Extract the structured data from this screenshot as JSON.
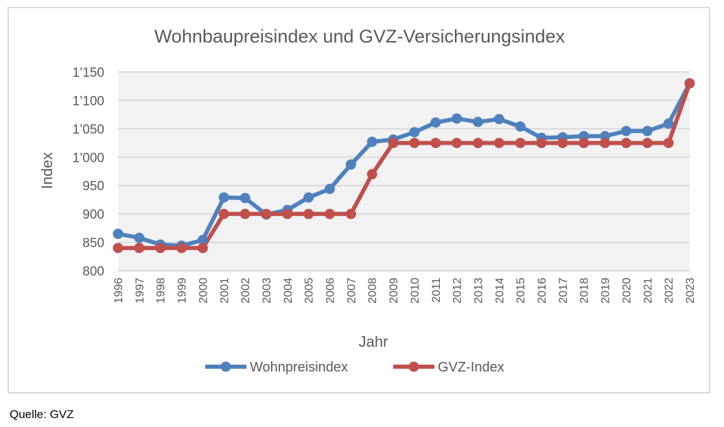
{
  "source_note": "Quelle: GVZ",
  "colors": {
    "series_1": "#4f81bd",
    "series_2": "#c0504d",
    "plot_bg": "#f2f2f2",
    "grid": "#d9d9d9"
  },
  "chart_data": {
    "type": "line",
    "title": "Wohnbaupreisindex und GVZ-Versicherungsindex",
    "xlabel": "Jahr",
    "ylabel": "Index",
    "ylim": [
      800,
      1150
    ],
    "y_ticks": [
      800,
      850,
      900,
      950,
      1000,
      1050,
      1100,
      1150
    ],
    "y_tick_labels": [
      "800",
      "850",
      "900",
      "950",
      "1’000",
      "1’050",
      "1’100",
      "1’150"
    ],
    "grid": true,
    "legend_position": "bottom",
    "categories": [
      "1996",
      "1997",
      "1998",
      "1999",
      "2000",
      "2001",
      "2002",
      "2003",
      "2004",
      "2005",
      "2006",
      "2007",
      "2008",
      "2009",
      "2010",
      "2011",
      "2012",
      "2013",
      "2014",
      "2015",
      "2016",
      "2017",
      "2018",
      "2019",
      "2020",
      "2021",
      "2022",
      "2023"
    ],
    "series": [
      {
        "name": "Wohnpreisindex",
        "values": [
          865,
          858,
          846,
          844,
          854,
          929,
          928,
          899,
          907,
          929,
          944,
          987,
          1027,
          1031,
          1044,
          1061,
          1068,
          1062,
          1067,
          1054,
          1034,
          1035,
          1037,
          1037,
          1046,
          1046,
          1059,
          1130
        ]
      },
      {
        "name": "GVZ-Index",
        "values": [
          840,
          840,
          840,
          840,
          840,
          900,
          900,
          900,
          900,
          900,
          900,
          900,
          970,
          1025,
          1025,
          1025,
          1025,
          1025,
          1025,
          1025,
          1025,
          1025,
          1025,
          1025,
          1025,
          1025,
          1025,
          1130
        ]
      }
    ]
  }
}
